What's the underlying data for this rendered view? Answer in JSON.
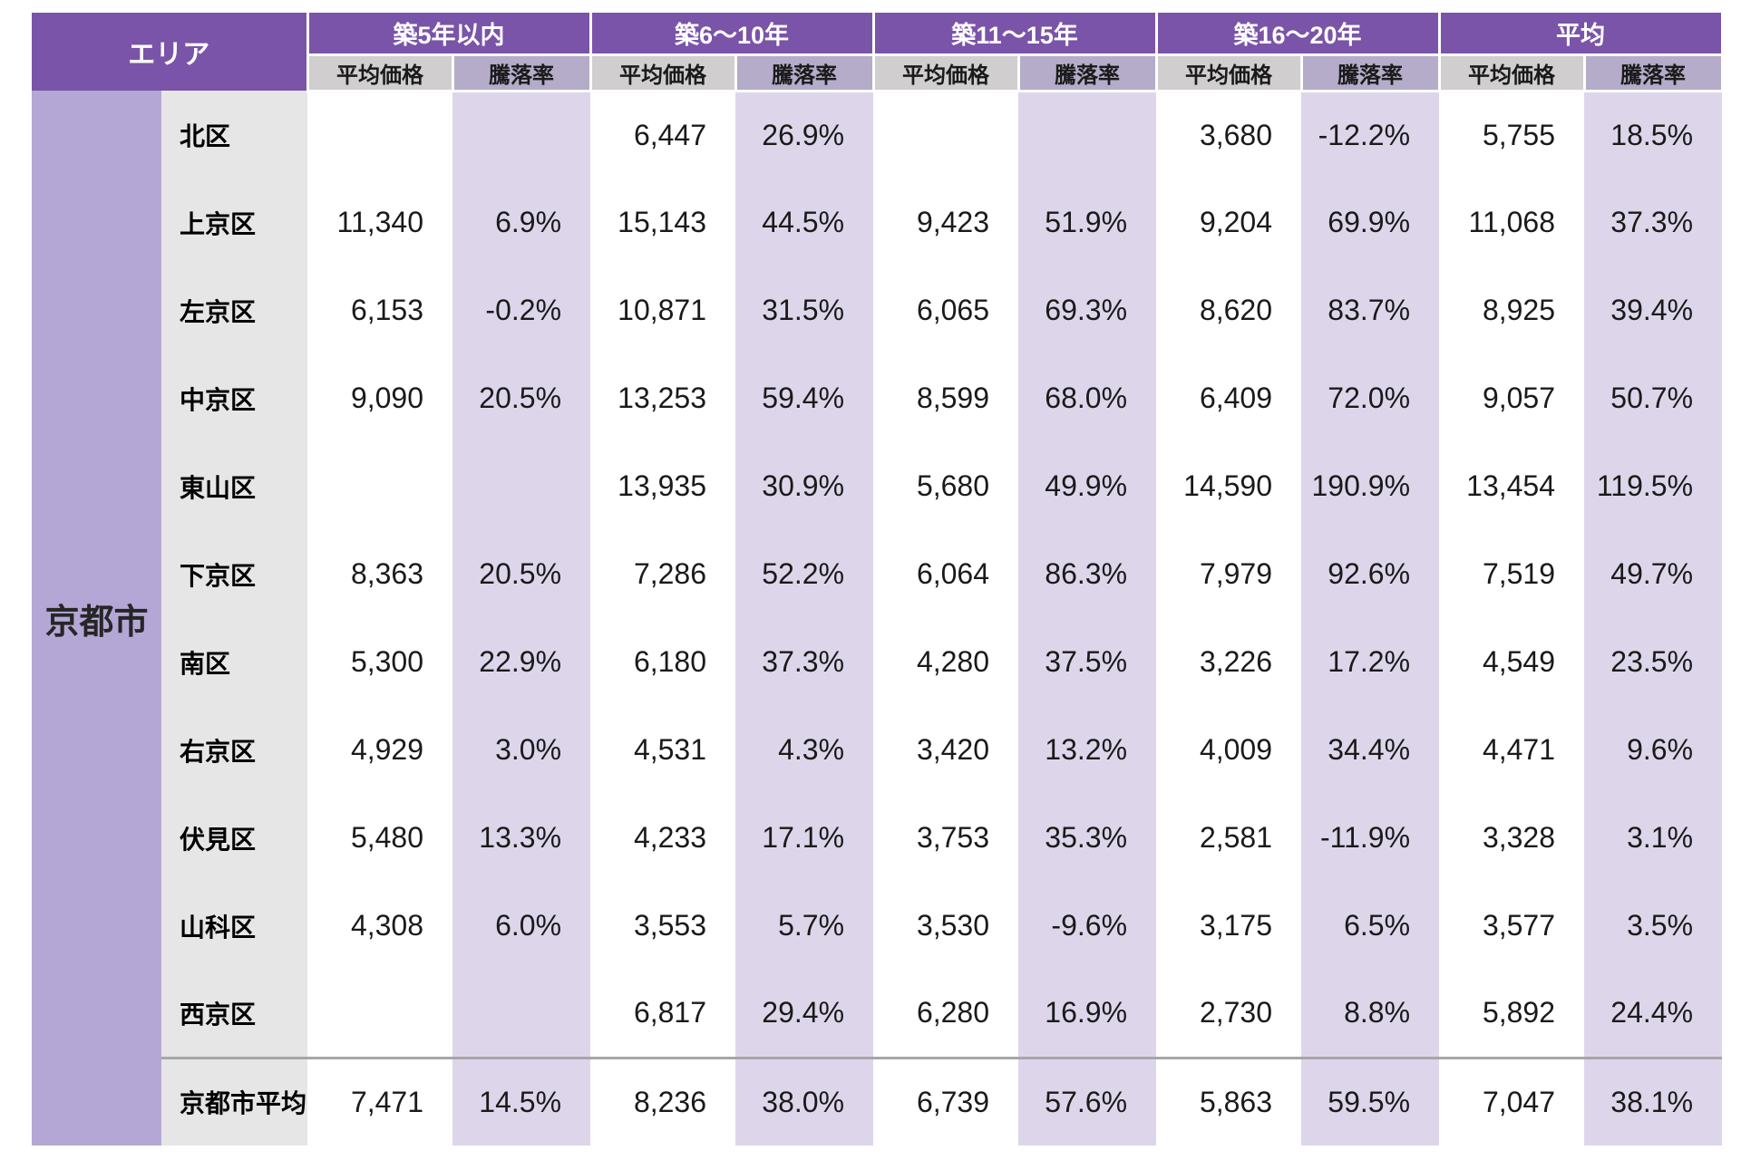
{
  "table": {
    "area_header": "エリア",
    "city_label": "京都市",
    "groups": [
      "築5年以内",
      "築6〜10年",
      "築11〜15年",
      "築16〜20年",
      "平均"
    ],
    "sub_headers": {
      "price": "平均価格",
      "rate": "騰落率"
    },
    "rows": [
      {
        "district": "北区",
        "is_summary": false,
        "cells": [
          "",
          "",
          "6,447",
          "26.9%",
          "",
          "",
          "3,680",
          "-12.2%",
          "5,755",
          "18.5%"
        ]
      },
      {
        "district": "上京区",
        "is_summary": false,
        "cells": [
          "11,340",
          "6.9%",
          "15,143",
          "44.5%",
          "9,423",
          "51.9%",
          "9,204",
          "69.9%",
          "11,068",
          "37.3%"
        ]
      },
      {
        "district": "左京区",
        "is_summary": false,
        "cells": [
          "6,153",
          "-0.2%",
          "10,871",
          "31.5%",
          "6,065",
          "69.3%",
          "8,620",
          "83.7%",
          "8,925",
          "39.4%"
        ]
      },
      {
        "district": "中京区",
        "is_summary": false,
        "cells": [
          "9,090",
          "20.5%",
          "13,253",
          "59.4%",
          "8,599",
          "68.0%",
          "6,409",
          "72.0%",
          "9,057",
          "50.7%"
        ]
      },
      {
        "district": "東山区",
        "is_summary": false,
        "cells": [
          "",
          "",
          "13,935",
          "30.9%",
          "5,680",
          "49.9%",
          "14,590",
          "190.9%",
          "13,454",
          "119.5%"
        ]
      },
      {
        "district": "下京区",
        "is_summary": false,
        "cells": [
          "8,363",
          "20.5%",
          "7,286",
          "52.2%",
          "6,064",
          "86.3%",
          "7,979",
          "92.6%",
          "7,519",
          "49.7%"
        ]
      },
      {
        "district": "南区",
        "is_summary": false,
        "cells": [
          "5,300",
          "22.9%",
          "6,180",
          "37.3%",
          "4,280",
          "37.5%",
          "3,226",
          "17.2%",
          "4,549",
          "23.5%"
        ]
      },
      {
        "district": "右京区",
        "is_summary": false,
        "cells": [
          "4,929",
          "3.0%",
          "4,531",
          "4.3%",
          "3,420",
          "13.2%",
          "4,009",
          "34.4%",
          "4,471",
          "9.6%"
        ]
      },
      {
        "district": "伏見区",
        "is_summary": false,
        "cells": [
          "5,480",
          "13.3%",
          "4,233",
          "17.1%",
          "3,753",
          "35.3%",
          "2,581",
          "-11.9%",
          "3,328",
          "3.1%"
        ]
      },
      {
        "district": "山科区",
        "is_summary": false,
        "cells": [
          "4,308",
          "6.0%",
          "3,553",
          "5.7%",
          "3,530",
          "-9.6%",
          "3,175",
          "6.5%",
          "3,577",
          "3.5%"
        ]
      },
      {
        "district": "西京区",
        "is_summary": false,
        "cells": [
          "",
          "",
          "6,817",
          "29.4%",
          "6,280",
          "16.9%",
          "2,730",
          "8.8%",
          "5,892",
          "24.4%"
        ]
      },
      {
        "district": "京都市平均",
        "is_summary": true,
        "cells": [
          "7,471",
          "14.5%",
          "8,236",
          "38.0%",
          "6,739",
          "57.6%",
          "5,863",
          "59.5%",
          "7,047",
          "38.1%"
        ]
      }
    ],
    "colors": {
      "header_purple": "#7A54A8",
      "city_column_purple": "#B4A7D6",
      "rate_stripe_lavender": "#DDD6EB",
      "sub_price_gray": "#D0CECE",
      "sub_rate_gray_purple": "#B4ACC8",
      "district_gray": "#E7E6E6",
      "summary_divider_gray": "#A6A6A6"
    }
  },
  "chart_data": {
    "type": "table",
    "area": "京都市",
    "column_groups": [
      "築5年以内",
      "築6〜10年",
      "築11〜15年",
      "築16〜20年",
      "平均"
    ],
    "metrics_per_group": [
      "平均価格",
      "騰落率(%)"
    ],
    "columns_order": [
      "築5年以内 平均価格",
      "築5年以内 騰落率",
      "築6〜10年 平均価格",
      "築6〜10年 騰落率",
      "築11〜15年 平均価格",
      "築11〜15年 騰落率",
      "築16〜20年 平均価格",
      "築16〜20年 騰落率",
      "平均 平均価格",
      "平均 騰落率"
    ],
    "rows": [
      {
        "district": "北区",
        "values": [
          null,
          null,
          6447,
          26.9,
          null,
          null,
          3680,
          -12.2,
          5755,
          18.5
        ]
      },
      {
        "district": "上京区",
        "values": [
          11340,
          6.9,
          15143,
          44.5,
          9423,
          51.9,
          9204,
          69.9,
          11068,
          37.3
        ]
      },
      {
        "district": "左京区",
        "values": [
          6153,
          -0.2,
          10871,
          31.5,
          6065,
          69.3,
          8620,
          83.7,
          8925,
          39.4
        ]
      },
      {
        "district": "中京区",
        "values": [
          9090,
          20.5,
          13253,
          59.4,
          8599,
          68.0,
          6409,
          72.0,
          9057,
          50.7
        ]
      },
      {
        "district": "東山区",
        "values": [
          null,
          null,
          13935,
          30.9,
          5680,
          49.9,
          14590,
          190.9,
          13454,
          119.5
        ]
      },
      {
        "district": "下京区",
        "values": [
          8363,
          20.5,
          7286,
          52.2,
          6064,
          86.3,
          7979,
          92.6,
          7519,
          49.7
        ]
      },
      {
        "district": "南区",
        "values": [
          5300,
          22.9,
          6180,
          37.3,
          4280,
          37.5,
          3226,
          17.2,
          4549,
          23.5
        ]
      },
      {
        "district": "右京区",
        "values": [
          4929,
          3.0,
          4531,
          4.3,
          3420,
          13.2,
          4009,
          34.4,
          4471,
          9.6
        ]
      },
      {
        "district": "伏見区",
        "values": [
          5480,
          13.3,
          4233,
          17.1,
          3753,
          35.3,
          2581,
          -11.9,
          3328,
          3.1
        ]
      },
      {
        "district": "山科区",
        "values": [
          4308,
          6.0,
          3553,
          5.7,
          3530,
          -9.6,
          3175,
          6.5,
          3577,
          3.5
        ]
      },
      {
        "district": "西京区",
        "values": [
          null,
          null,
          6817,
          29.4,
          6280,
          16.9,
          2730,
          8.8,
          5892,
          24.4
        ]
      },
      {
        "district": "京都市平均",
        "values": [
          7471,
          14.5,
          8236,
          38.0,
          6739,
          57.6,
          5863,
          59.5,
          7047,
          38.1
        ]
      }
    ]
  }
}
